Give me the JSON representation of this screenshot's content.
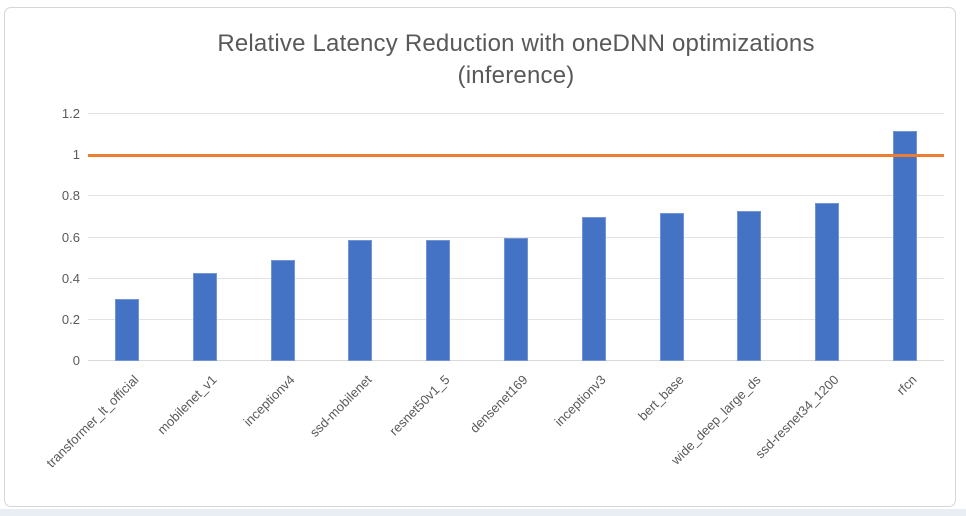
{
  "chart_data": {
    "type": "bar",
    "title": "Relative Latency Reduction with oneDNN optimizations (inference)",
    "title_line1": "Relative Latency Reduction with oneDNN optimizations",
    "title_line2": "(inference)",
    "categories": [
      "transformer_lt_official",
      "mobilenet_v1",
      "inceptionv4",
      "ssd-mobilenet",
      "resnet50v1_5",
      "densenet169",
      "inceptionv3",
      "bert_base",
      "wide_deep_large_ds",
      "ssd-resnet34_1200",
      "rfcn"
    ],
    "values": [
      0.3,
      0.43,
      0.49,
      0.59,
      0.59,
      0.6,
      0.7,
      0.72,
      0.73,
      0.77,
      1.12
    ],
    "xlabel": "",
    "ylabel": "",
    "ylim": [
      0,
      1.2
    ],
    "yticks": [
      {
        "label": "0",
        "value": 0
      },
      {
        "label": "0.2",
        "value": 0.2
      },
      {
        "label": "0.4",
        "value": 0.4
      },
      {
        "label": "0.6",
        "value": 0.6
      },
      {
        "label": "0.8",
        "value": 0.8
      },
      {
        "label": "1",
        "value": 1
      },
      {
        "label": "1.2",
        "value": 1.2
      }
    ],
    "baseline": {
      "value": 1,
      "color": "#ED7D31"
    },
    "bar_color": "#4472C4",
    "gridline_color": "#e2e2e2",
    "grid": "horizontal",
    "legend": "none"
  }
}
